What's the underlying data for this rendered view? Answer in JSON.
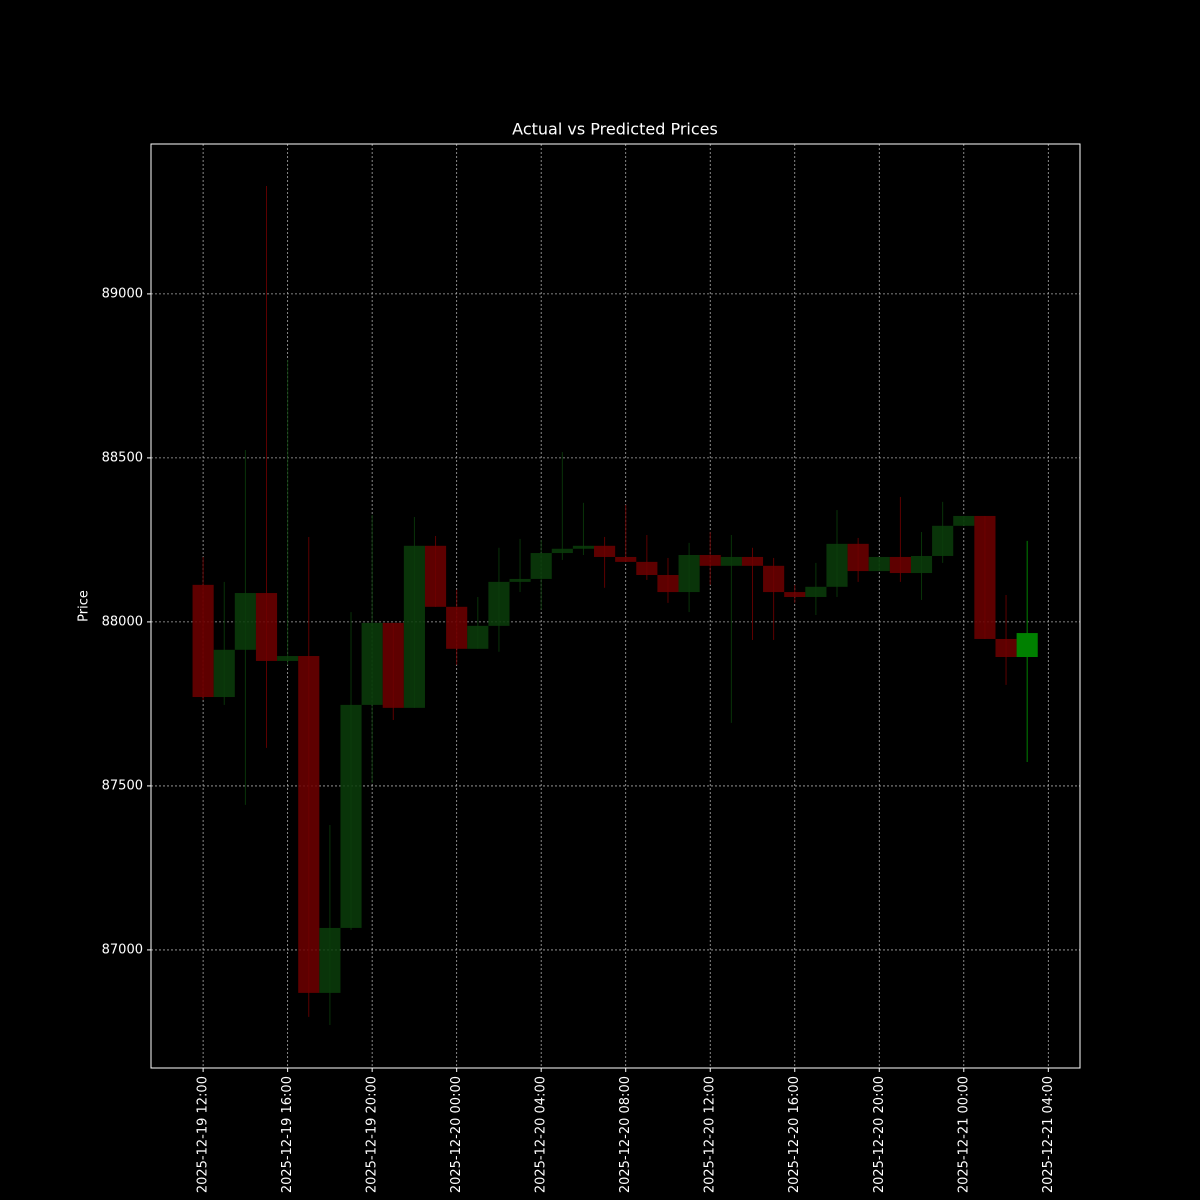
{
  "chart_data": {
    "type": "candlestick",
    "title": "Actual vs Predicted Prices",
    "y_label": "Price",
    "xlim": [
      "2025-12-19 09:32",
      "2025-12-21 05:30"
    ],
    "xticks": [
      "2025-12-19 12:00",
      "2025-12-19 16:00",
      "2025-12-19 20:00",
      "2025-12-20 00:00",
      "2025-12-20 04:00",
      "2025-12-20 08:00",
      "2025-12-20 12:00",
      "2025-12-20 16:00",
      "2025-12-20 20:00",
      "2025-12-21 00:00",
      "2025-12-21 04:00"
    ],
    "ylim": [
      86640,
      89457
    ],
    "yticks": [
      87000,
      87500,
      88000,
      88500,
      89000
    ],
    "grid": true,
    "series": [
      {
        "up_color": "#0b3d0b",
        "down_color": "#6e0000",
        "opacity": 0.85,
        "x": [
          "2025-12-19 12:00",
          "2025-12-19 13:00",
          "2025-12-19 14:00",
          "2025-12-19 15:00",
          "2025-12-19 16:00",
          "2025-12-19 17:00",
          "2025-12-19 18:00",
          "2025-12-19 19:00",
          "2025-12-19 20:00",
          "2025-12-19 21:00",
          "2025-12-19 22:00",
          "2025-12-19 23:00",
          "2025-12-20 00:00",
          "2025-12-20 01:00",
          "2025-12-20 02:00",
          "2025-12-20 03:00",
          "2025-12-20 04:00",
          "2025-12-20 05:00",
          "2025-12-20 06:00",
          "2025-12-20 07:00",
          "2025-12-20 08:00",
          "2025-12-20 09:00",
          "2025-12-20 10:00",
          "2025-12-20 11:00",
          "2025-12-20 12:00",
          "2025-12-20 13:00",
          "2025-12-20 14:00",
          "2025-12-20 15:00",
          "2025-12-20 16:00",
          "2025-12-20 17:00",
          "2025-12-20 18:00",
          "2025-12-20 19:00",
          "2025-12-20 20:00",
          "2025-12-20 21:00",
          "2025-12-20 22:00",
          "2025-12-20 23:00",
          "2025-12-21 00:00",
          "2025-12-21 01:00",
          "2025-12-21 02:00"
        ],
        "open": [
          88113,
          87771,
          87915,
          88088,
          87881,
          87896,
          86869,
          87067,
          87747,
          87997,
          87738,
          88232,
          88046,
          87918,
          87988,
          88122,
          88131,
          88210,
          88223,
          88232,
          88198,
          88183,
          88143,
          88091,
          88204,
          88171,
          88198,
          88171,
          88091,
          88076,
          88107,
          88238,
          88155,
          88198,
          88149,
          88201,
          88293,
          88323,
          87948
        ],
        "high": [
          88198,
          88122,
          88524,
          89329,
          88799,
          88259,
          87381,
          88030,
          88326,
          87997,
          88320,
          88262,
          88098,
          88076,
          88226,
          88253,
          88250,
          88518,
          88363,
          88259,
          88357,
          88265,
          88195,
          88241,
          88274,
          88265,
          88226,
          88195,
          88113,
          88180,
          88341,
          88256,
          88198,
          88381,
          88274,
          88366,
          88323,
          88323,
          88082
        ],
        "low": [
          87762,
          87747,
          87442,
          87616,
          87869,
          86796,
          86771,
          87061,
          87509,
          87701,
          87738,
          88046,
          87869,
          87918,
          87909,
          88091,
          88037,
          88189,
          88204,
          88104,
          88183,
          88128,
          88058,
          88030,
          88113,
          87692,
          87945,
          87945,
          88058,
          88021,
          88076,
          88122,
          88155,
          88122,
          88067,
          88180,
          88293,
          87948,
          87808
        ],
        "close": [
          87771,
          87915,
          88088,
          87881,
          87896,
          86869,
          87067,
          87747,
          87997,
          87738,
          88232,
          88046,
          87918,
          87988,
          88122,
          88131,
          88210,
          88223,
          88232,
          88198,
          88183,
          88143,
          88091,
          88204,
          88171,
          88198,
          88171,
          88091,
          88076,
          88107,
          88238,
          88155,
          88198,
          88149,
          88201,
          88293,
          88323,
          87948,
          87893
        ]
      },
      {
        "up_color": "#008000",
        "down_color": "#cc0000",
        "opacity": 1,
        "x": [
          "2025-12-21 03:00"
        ],
        "open": [
          87893
        ],
        "high": [
          88247
        ],
        "low": [
          87573
        ],
        "close": [
          87966
        ]
      }
    ]
  }
}
